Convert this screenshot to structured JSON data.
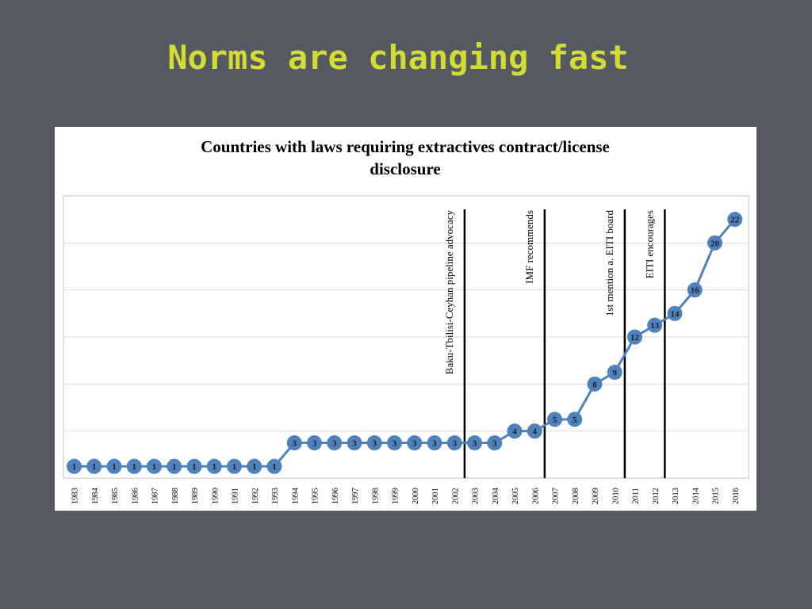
{
  "slide": {
    "title": "Norms are changing fast"
  },
  "chart_data": {
    "type": "line",
    "title": "Countries with laws requiring extractives contract/license disclosure",
    "title_lines": [
      "Countries with laws requiring extractives contract/license",
      "disclosure"
    ],
    "xlabel": "",
    "ylabel": "",
    "categories": [
      "1983",
      "1984",
      "1985",
      "1986",
      "1987",
      "1988",
      "1989",
      "1990",
      "1991",
      "1992",
      "1993",
      "1994",
      "1995",
      "1996",
      "1997",
      "1998",
      "1999",
      "2000",
      "2001",
      "2002",
      "2003",
      "2004",
      "2005",
      "2006",
      "2007",
      "2008",
      "2009",
      "2010",
      "2011",
      "2012",
      "2013",
      "2014",
      "2015",
      "2016"
    ],
    "series": [
      {
        "values": [
          1,
          1,
          1,
          1,
          1,
          1,
          1,
          1,
          1,
          1,
          1,
          3,
          3,
          3,
          3,
          3,
          3,
          3,
          3,
          3,
          3,
          3,
          4,
          4,
          5,
          5,
          8,
          9,
          12,
          13,
          14,
          16,
          20,
          22
        ]
      }
    ],
    "ylim": [
      0,
      24
    ],
    "yticks": [
      0,
      4,
      8,
      12,
      16,
      20,
      24
    ],
    "grid": true,
    "legend": "none",
    "annotations": [
      {
        "text": "Baku-Tbilisi-Ceyhan pipeline advocacy",
        "after_category": "2002"
      },
      {
        "text": "IMF recommends",
        "after_category": "2006"
      },
      {
        "text": "1st mention a. EITI board",
        "after_category": "2010"
      },
      {
        "text": "EITI encourages",
        "after_category": "2012"
      }
    ],
    "colors": {
      "line": "#4f81bd",
      "marker": "#4f81bd",
      "grid": "#d9d9d9",
      "annotation_line": "#000000"
    }
  }
}
